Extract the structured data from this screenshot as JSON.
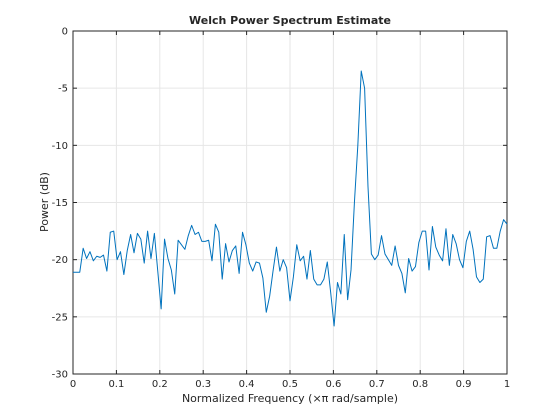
{
  "chart_data": {
    "type": "line",
    "title": "Welch Power Spectrum Estimate",
    "xlabel": "Normalized Frequency  (×π rad/sample)",
    "ylabel": "Power (dB)",
    "xlim": [
      0,
      1
    ],
    "ylim": [
      -30,
      0
    ],
    "xticks": [
      0,
      0.1,
      0.2,
      0.3,
      0.4,
      0.5,
      0.6,
      0.7,
      0.8,
      0.9,
      1
    ],
    "xtick_labels": [
      "0",
      "0.1",
      "0.2",
      "0.3",
      "0.4",
      "0.5",
      "0.6",
      "0.7",
      "0.8",
      "0.9",
      "1"
    ],
    "yticks": [
      0,
      -5,
      -10,
      -15,
      -20,
      -25,
      -30
    ],
    "ytick_labels": [
      "0",
      "-5",
      "-10",
      "-15",
      "-20",
      "-25",
      "-30"
    ],
    "grid": true,
    "colors": {
      "line": "#0072BD",
      "grid": "#e6e6e6",
      "axis": "#262626"
    },
    "series": [
      {
        "x": [
          0.0,
          0.0078,
          0.0156,
          0.0234,
          0.0313,
          0.0391,
          0.0469,
          0.0547,
          0.0625,
          0.0703,
          0.0781,
          0.0859,
          0.0938,
          0.1016,
          0.1094,
          0.1172,
          0.125,
          0.1328,
          0.1406,
          0.1484,
          0.1563,
          0.1641,
          0.1719,
          0.1797,
          0.1875,
          0.1953,
          0.2031,
          0.2109,
          0.2188,
          0.2266,
          0.2344,
          0.2422,
          0.25,
          0.2578,
          0.2656,
          0.2734,
          0.2813,
          0.2891,
          0.2969,
          0.3047,
          0.3125,
          0.3203,
          0.3281,
          0.3359,
          0.3438,
          0.3516,
          0.3594,
          0.3672,
          0.375,
          0.3828,
          0.3906,
          0.3984,
          0.4063,
          0.4141,
          0.4219,
          0.4297,
          0.4375,
          0.4453,
          0.4531,
          0.4609,
          0.4688,
          0.4766,
          0.4844,
          0.4922,
          0.5,
          0.5078,
          0.5156,
          0.5234,
          0.5313,
          0.5391,
          0.5469,
          0.5547,
          0.5625,
          0.5703,
          0.5781,
          0.5859,
          0.5938,
          0.6016,
          0.6094,
          0.6172,
          0.625,
          0.6328,
          0.6406,
          0.6484,
          0.6563,
          0.6641,
          0.6719,
          0.6797,
          0.6875,
          0.6953,
          0.7031,
          0.7109,
          0.7188,
          0.7266,
          0.7344,
          0.7422,
          0.75,
          0.7578,
          0.7656,
          0.7734,
          0.7813,
          0.7891,
          0.7969,
          0.8047,
          0.8125,
          0.8203,
          0.8281,
          0.8359,
          0.8438,
          0.8516,
          0.8594,
          0.8672,
          0.875,
          0.8828,
          0.8906,
          0.8984,
          0.9063,
          0.9141,
          0.9219,
          0.9297,
          0.9375,
          0.9453,
          0.9531,
          0.9609,
          0.9688,
          0.9766,
          0.9844,
          0.9922,
          1.0
        ],
        "y": [
          -21.1,
          -21.1,
          -21.1,
          -19.0,
          -19.9,
          -19.3,
          -20.1,
          -19.7,
          -19.8,
          -19.6,
          -21.0,
          -17.6,
          -17.5,
          -20.0,
          -19.3,
          -21.3,
          -19.2,
          -17.8,
          -19.4,
          -17.7,
          -18.2,
          -20.3,
          -17.5,
          -19.9,
          -17.7,
          -21.0,
          -24.3,
          -18.2,
          -19.9,
          -20.9,
          -23.0,
          -18.3,
          -18.7,
          -19.1,
          -17.9,
          -17.0,
          -17.8,
          -17.6,
          -18.4,
          -18.4,
          -18.3,
          -20.1,
          -16.9,
          -17.6,
          -21.7,
          -18.6,
          -20.2,
          -19.2,
          -18.8,
          -21.2,
          -17.6,
          -18.7,
          -20.3,
          -21.0,
          -20.2,
          -20.3,
          -21.6,
          -24.6,
          -23.2,
          -21.0,
          -18.9,
          -21.0,
          -20.0,
          -20.7,
          -23.6,
          -21.5,
          -18.7,
          -20.1,
          -19.7,
          -21.7,
          -19.2,
          -21.7,
          -22.2,
          -22.2,
          -21.7,
          -20.2,
          -22.9,
          -25.8,
          -22.0,
          -23.0,
          -17.8,
          -23.5,
          -20.9,
          -15.0,
          -10.0,
          -3.5,
          -5.0,
          -13.6,
          -19.5,
          -20.0,
          -19.6,
          -17.9,
          -19.5,
          -20.0,
          -20.5,
          -18.8,
          -20.5,
          -21.2,
          -22.9,
          -19.9,
          -21.0,
          -20.6,
          -18.5,
          -17.5,
          -17.5,
          -20.9,
          -17.1,
          -18.9,
          -19.6,
          -20.1,
          -17.3,
          -20.5,
          -17.8,
          -18.6,
          -20.0,
          -20.7,
          -18.4,
          -17.5,
          -19.1,
          -21.5,
          -22.0,
          -21.7,
          -18.0,
          -17.9,
          -19.0,
          -19.0,
          -17.5,
          -16.5,
          -16.9
        ]
      }
    ]
  }
}
